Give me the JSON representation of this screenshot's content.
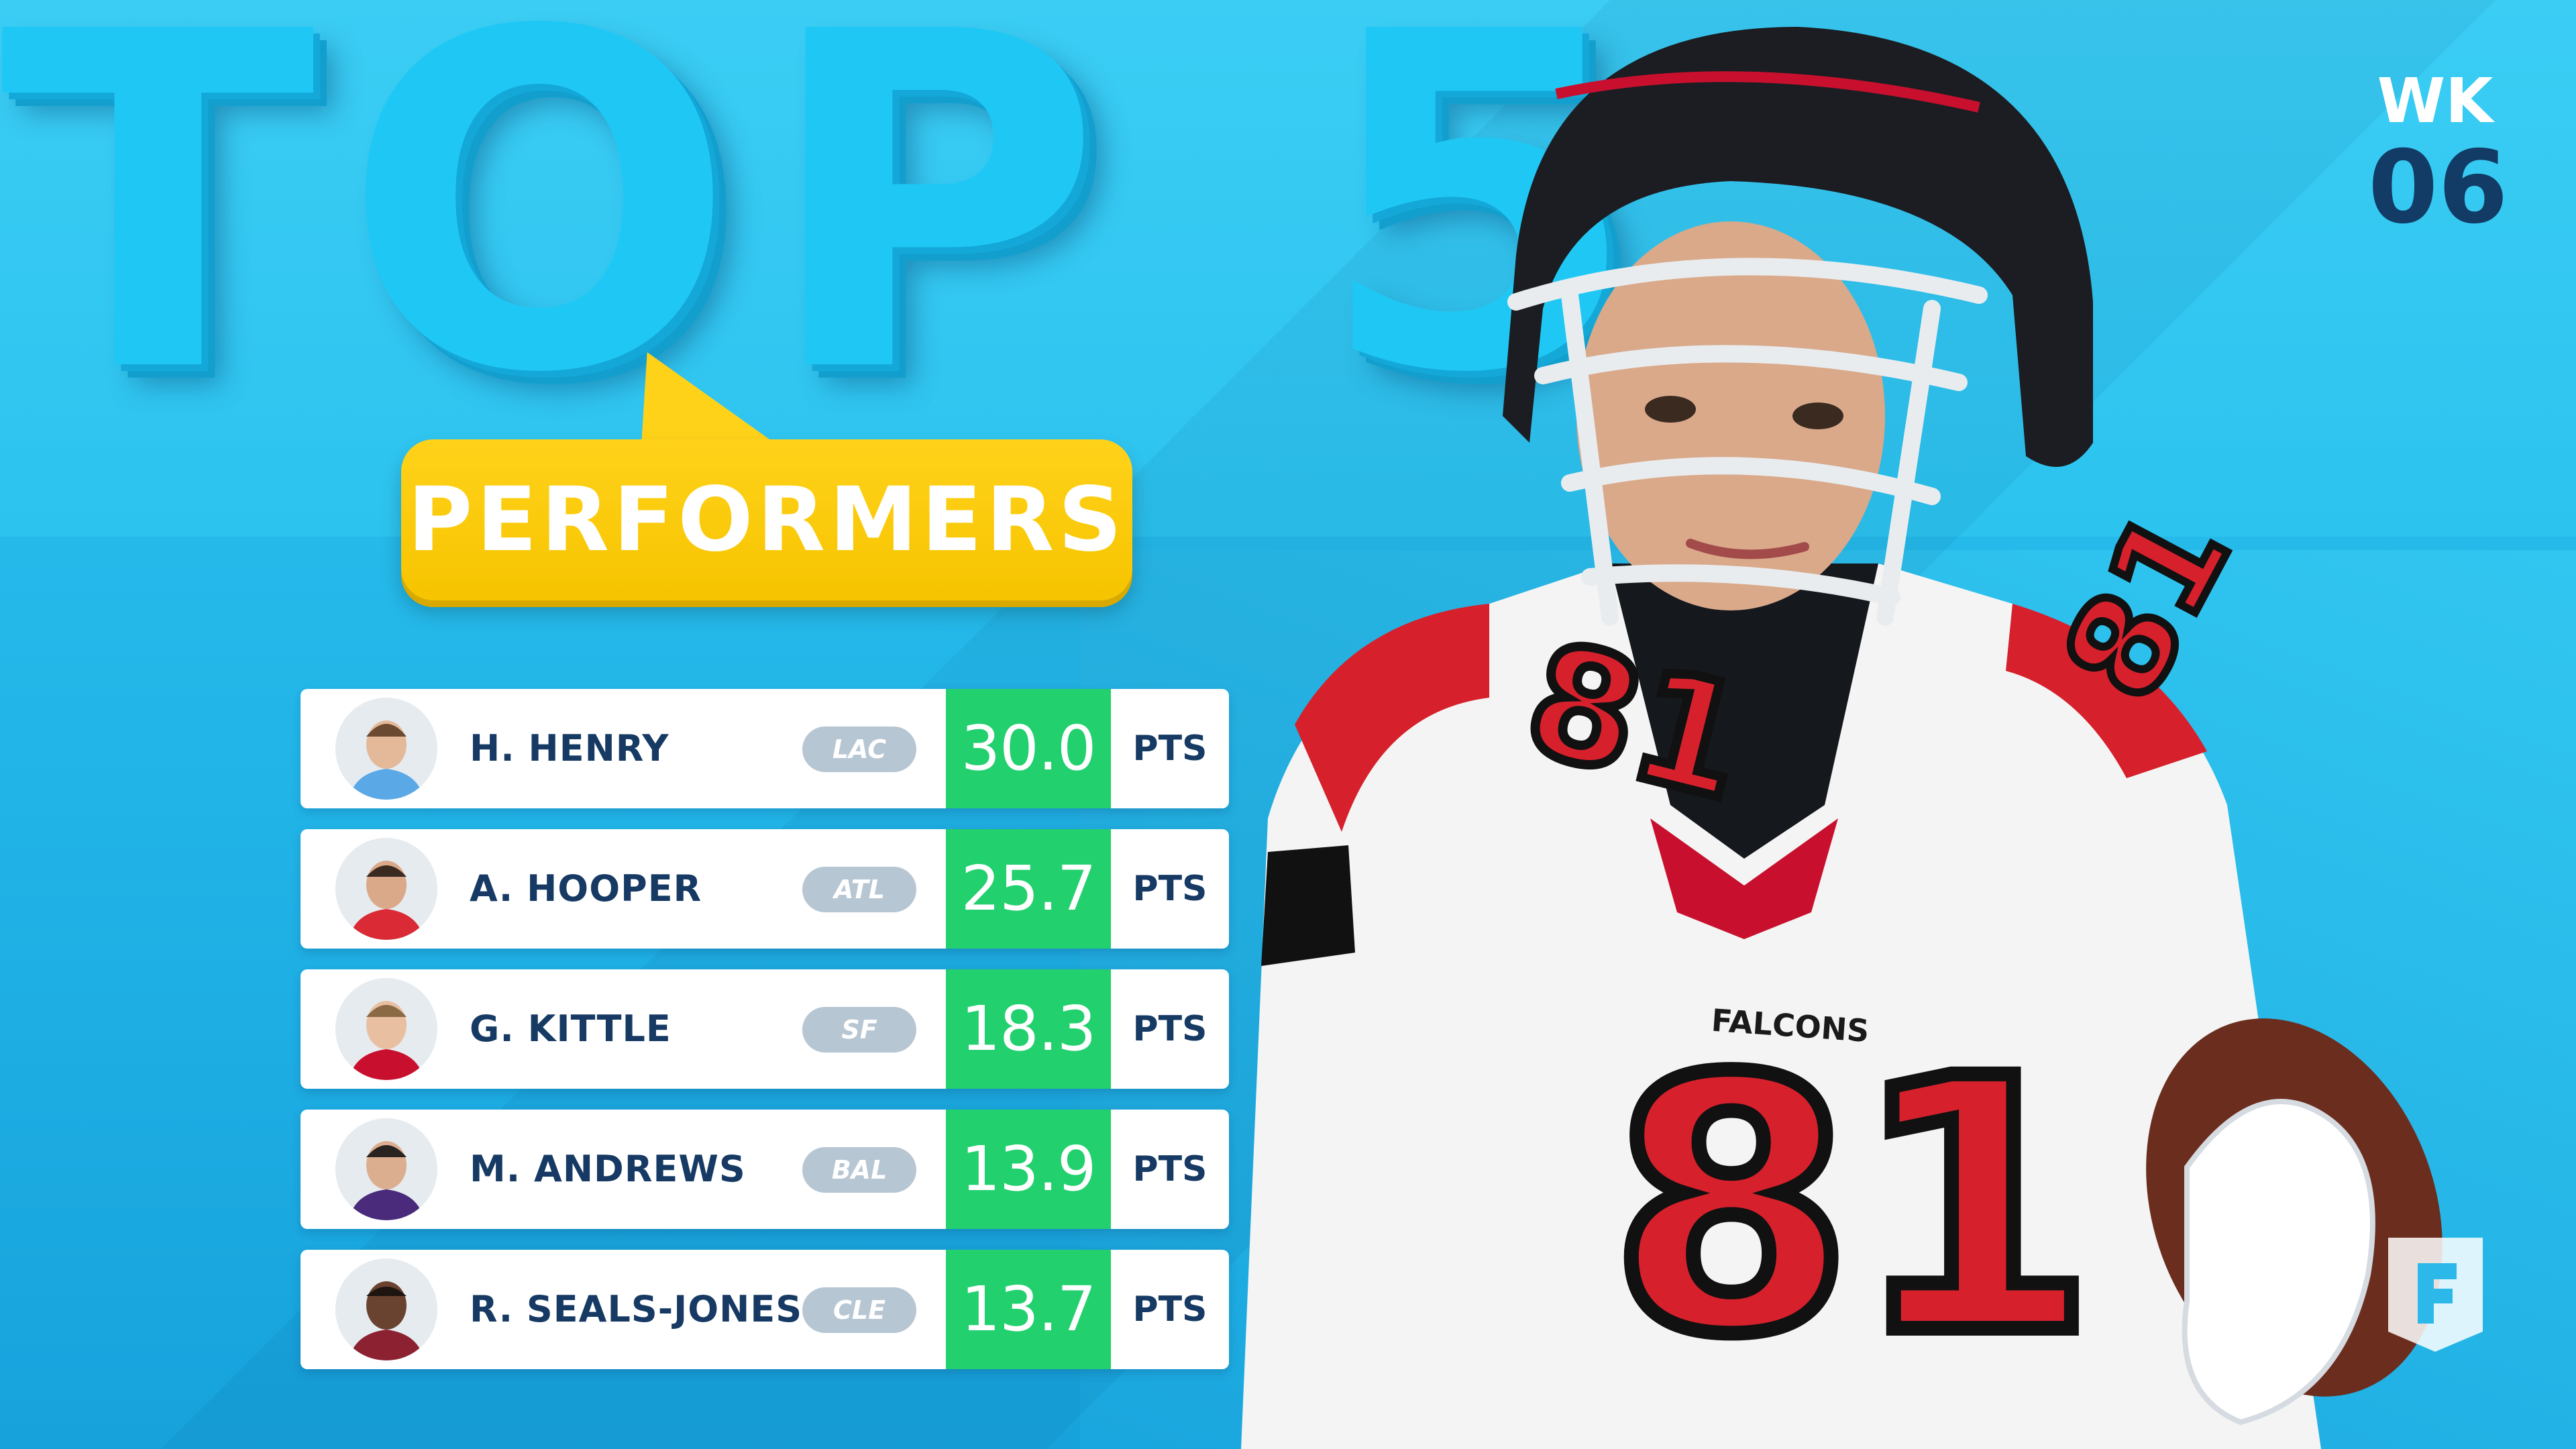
{
  "header": {
    "title": "TOP 5",
    "subtitle": "PERFORMERS",
    "week_label": "WK",
    "week_number": "06"
  },
  "colors": {
    "background": "#22b6e8",
    "title": "#1fc8f4",
    "bubble": "#ffd21a",
    "score_fill": "#22d06e",
    "navy": "#163a63",
    "team_pill": "#b7c6d3"
  },
  "leaderboard": [
    {
      "name": "H. HENRY",
      "team": "LAC",
      "points": "30.0",
      "unit": "PTS",
      "jersey_color": "#5aa8e6"
    },
    {
      "name": "A. HOOPER",
      "team": "ATL",
      "points": "25.7",
      "unit": "PTS",
      "jersey_color": "#d92a35"
    },
    {
      "name": "G. KITTLE",
      "team": "SF",
      "points": "18.3",
      "unit": "PTS",
      "jersey_color": "#c8102e"
    },
    {
      "name": "M. ANDREWS",
      "team": "BAL",
      "points": "13.9",
      "unit": "PTS",
      "jersey_color": "#4a2a7a"
    },
    {
      "name": "R. SEALS-JONES",
      "team": "CLE",
      "points": "13.7",
      "unit": "PTS",
      "jersey_color": "#8b2131"
    }
  ],
  "hero_image": {
    "subject": "player-photo",
    "jersey_number": "81",
    "team_wordmark": "FALCONS"
  },
  "brand": {
    "icon": "brand-logo-icon"
  }
}
